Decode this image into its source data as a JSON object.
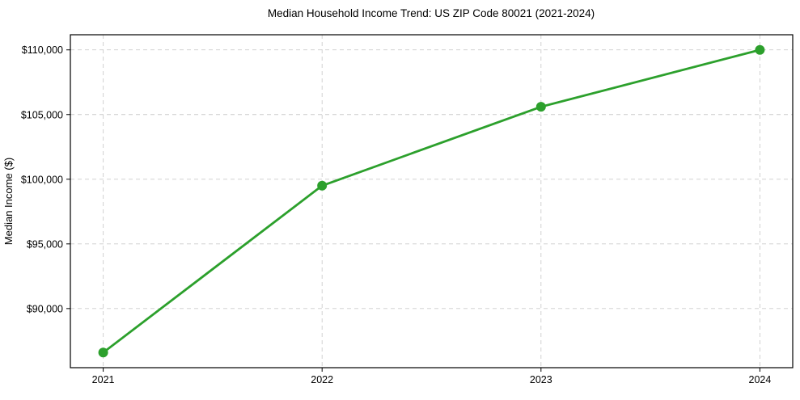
{
  "chart_data": {
    "type": "line",
    "title": "Median Household Income Trend: US ZIP Code 80021 (2021-2024)",
    "ylabel": "Median Income ($)",
    "xlabel": "",
    "x": [
      2021,
      2022,
      2023,
      2024
    ],
    "xtick_labels": [
      "2021",
      "2022",
      "2023",
      "2024"
    ],
    "series": [
      {
        "values": [
          86600,
          99500,
          105600,
          110000
        ],
        "color": "#2ca02c",
        "marker": "circle"
      }
    ],
    "yticks": [
      90000,
      95000,
      100000,
      105000,
      110000
    ],
    "ytick_labels": [
      "$90,000",
      "$95,000",
      "$100,000",
      "$105,000",
      "$110,000"
    ],
    "xlim": [
      2020.85,
      2024.15
    ],
    "ylim": [
      85430,
      111170
    ],
    "grid": true,
    "grid_style": "dashed",
    "grid_color": "#cccccc",
    "axes_color": "#000000",
    "background": "#ffffff",
    "legend": "none"
  }
}
